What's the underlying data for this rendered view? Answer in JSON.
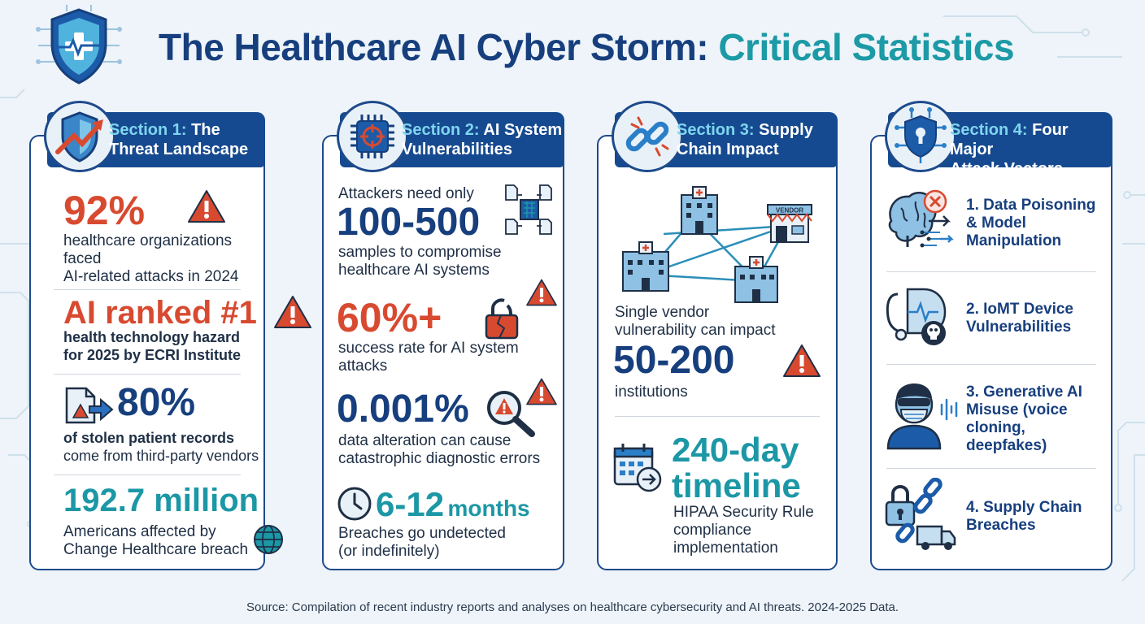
{
  "title": {
    "main": "The Healthcare AI Cyber Storm:",
    "accent": "Critical Statistics"
  },
  "sections": [
    {
      "label": "Section 1:",
      "title_line1": "The",
      "title_line2": "Threat Landscape",
      "stats": [
        {
          "value": "92%",
          "desc_line1": "healthcare organizations faced",
          "desc_line2": "AI-related attacks in 2024"
        },
        {
          "value": "AI ranked #1",
          "desc_line1": "health technology hazard",
          "desc_line2": "for 2025 by ECRI Institute"
        },
        {
          "value": "80%",
          "desc_line1": "of stolen patient records",
          "desc_line2": "come from third-party vendors"
        },
        {
          "value": "192.7 million",
          "desc_line1": "Americans affected by",
          "desc_line2": "Change Healthcare breach"
        }
      ]
    },
    {
      "label": "Section 2:",
      "title_line1": "AI System",
      "title_line2": "Vulnerabilities",
      "stats": [
        {
          "pre": "Attackers need only",
          "value": "100-500",
          "desc_line1": "samples to compromise",
          "desc_line2": "healthcare AI systems"
        },
        {
          "value": "60%+",
          "desc_line1": "success rate for AI system",
          "desc_line2": "attacks"
        },
        {
          "value": "0.001%",
          "desc_line1": "data alteration can cause",
          "desc_line2": "catastrophic diagnostic errors"
        },
        {
          "value": "6-12",
          "unit": "months",
          "desc_line1": "Breaches go undetected",
          "desc_line2": "(or indefinitely)"
        }
      ]
    },
    {
      "label": "Section 3:",
      "title_line1": "Supply",
      "title_line2": "Chain Impact",
      "vendor_label": "VENDOR",
      "stats": [
        {
          "pre_line1": "Single vendor",
          "pre_line2": "vulnerability can impact",
          "value": "50-200",
          "desc_line1": "institutions"
        },
        {
          "value_line1": "240-day",
          "value_line2": "timeline",
          "desc_line1": "HIPAA Security Rule",
          "desc_line2": "compliance",
          "desc_line3": "implementation"
        }
      ]
    },
    {
      "label": "Section 4:",
      "title_line1": "Four Major",
      "title_line2": "Attack Vectors",
      "vectors": [
        {
          "line1": "1. Data Poisoning",
          "line2": "& Model",
          "line3": "Manipulation",
          "icon": "brain-poison-icon"
        },
        {
          "line1": "2. IoMT Device",
          "line2": "Vulnerabilities",
          "icon": "medical-device-skull-icon"
        },
        {
          "line1": "3. Generative AI",
          "line2": "Misuse (voice",
          "line3": "cloning,",
          "line4": "deepfakes)",
          "icon": "masked-person-voice-icon"
        },
        {
          "line1": "4. Supply Chain",
          "line2": "Breaches",
          "icon": "broken-chain-truck-icon"
        }
      ]
    }
  ],
  "source": "Source: Compilation of recent industry reports and analyses on healthcare cybersecurity and AI threats. 2024-2025 Data.",
  "colors": {
    "navy": "#173f7e",
    "teal": "#1c97a6",
    "red": "#d84a30",
    "header": "#164a90"
  }
}
